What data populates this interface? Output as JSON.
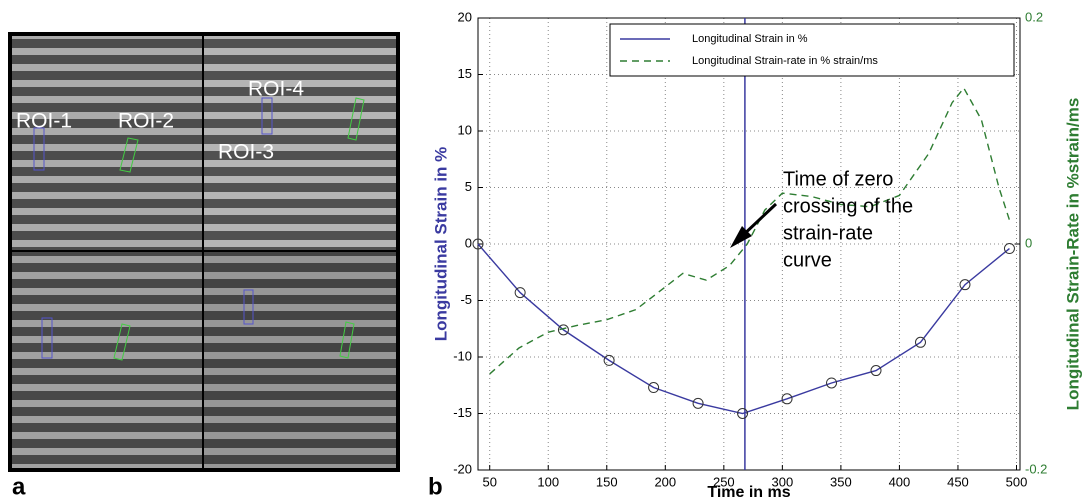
{
  "panel_labels": [
    "a",
    "b"
  ],
  "image_panel": {
    "roi_labels": [
      "ROI-1",
      "ROI-2",
      "ROI-3",
      "ROI-4"
    ]
  },
  "chart_data": {
    "type": "line",
    "xlabel": "Time in ms",
    "ylabel": "Longitudinal Strain in %",
    "y2label": "Longitudinal Strain-Rate in %strain/ms",
    "xlim": [
      40,
      503
    ],
    "xticks": [
      50,
      100,
      150,
      200,
      250,
      300,
      350,
      400,
      450,
      500
    ],
    "ylim": [
      -20,
      20
    ],
    "yticks": [
      -20,
      -15,
      -10,
      -5,
      0,
      5,
      10,
      15,
      20
    ],
    "y2lim": [
      -0.2,
      0.2
    ],
    "y2ticks": [
      -0.2,
      0,
      0.2
    ],
    "grid": true,
    "legend": "upper right",
    "series": [
      {
        "name": "Longitudinal Strain in %",
        "color": "#3a3aa0",
        "marker": "o",
        "x": [
          40,
          76,
          113,
          152,
          190,
          228,
          266,
          304,
          342,
          380,
          418,
          456,
          494
        ],
        "values": [
          0,
          -4.3,
          -7.6,
          -10.3,
          -12.7,
          -14.1,
          -15,
          -13.7,
          -12.3,
          -11.2,
          -8.7,
          -3.6,
          -0.4
        ]
      },
      {
        "name": "Longitudinal Strain-rate in % strain/ms",
        "color": "#2e7d32",
        "dashed": true,
        "axis": "y2",
        "x": [
          50,
          75,
          100,
          125,
          150,
          175,
          200,
          215,
          235,
          255,
          270,
          285,
          300,
          325,
          350,
          375,
          400,
          425,
          445,
          455,
          470,
          485,
          495
        ],
        "values": [
          -0.115,
          -0.092,
          -0.078,
          -0.072,
          -0.067,
          -0.058,
          -0.038,
          -0.026,
          -0.032,
          -0.019,
          0,
          0.03,
          0.045,
          0.042,
          0.035,
          0.033,
          0.043,
          0.08,
          0.125,
          0.138,
          0.11,
          0.05,
          0.018
        ]
      }
    ],
    "vline_x": 268,
    "annotation": [
      "Time of zero",
      "crossing of the",
      "strain-rate",
      "curve"
    ]
  }
}
